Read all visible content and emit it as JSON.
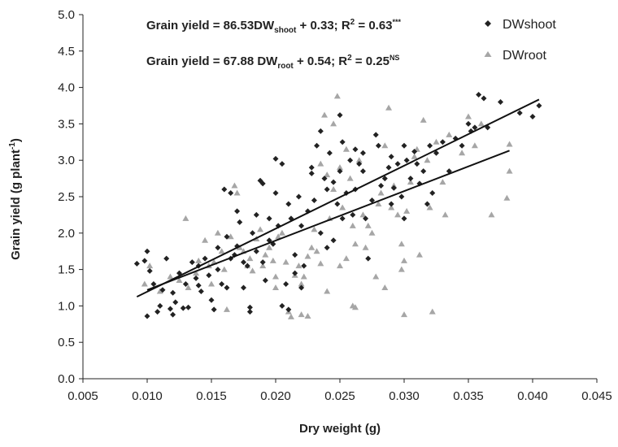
{
  "chart_data": {
    "type": "scatter",
    "xlabel": "Dry weight (g)",
    "ylabel_main": "Grain yield (g plant",
    "ylabel_sup": "-1",
    "ylabel_tail": ")",
    "xlim": [
      0.005,
      0.045
    ],
    "ylim": [
      0.0,
      5.0
    ],
    "x_ticks": [
      "0.005",
      "0.010",
      "0.015",
      "0.020",
      "0.025",
      "0.030",
      "0.035",
      "0.040",
      "0.045"
    ],
    "y_ticks": [
      "0.0",
      "0.5",
      "1.0",
      "1.5",
      "2.0",
      "2.5",
      "3.0",
      "3.5",
      "4.0",
      "4.5",
      "5.0"
    ],
    "grid": false,
    "legend_position": "top-right",
    "equations": {
      "shoot": {
        "prefix": "Grain yield = 86.53DW",
        "sub": "shoot",
        "mid": " + 0.33;   R",
        "sup2": "2",
        "r2": " = 0.63",
        "sig": "***"
      },
      "root": {
        "prefix": "Grain yield = 67.88 DW",
        "sub": "root",
        "mid": " + 0.54;   R",
        "sup2": "2",
        "r2": " = 0.25",
        "sig": "NS"
      }
    },
    "series": [
      {
        "name": "DWshoot",
        "marker": "diamond",
        "color": "#222222",
        "trendline": {
          "slope": 86.53,
          "intercept": 0.33,
          "x_range": [
            0.0092,
            0.0405
          ]
        },
        "points": [
          [
            0.0092,
            1.58
          ],
          [
            0.0098,
            1.62
          ],
          [
            0.01,
            1.75
          ],
          [
            0.0102,
            1.48
          ],
          [
            0.01,
            0.86
          ],
          [
            0.0105,
            1.3
          ],
          [
            0.0108,
            0.92
          ],
          [
            0.011,
            1.0
          ],
          [
            0.0112,
            1.22
          ],
          [
            0.0115,
            1.65
          ],
          [
            0.0118,
            0.96
          ],
          [
            0.012,
            1.18
          ],
          [
            0.012,
            0.88
          ],
          [
            0.0122,
            1.05
          ],
          [
            0.0125,
            1.45
          ],
          [
            0.0128,
            0.97
          ],
          [
            0.013,
            1.3
          ],
          [
            0.0132,
            0.98
          ],
          [
            0.0135,
            1.6
          ],
          [
            0.0138,
            1.38
          ],
          [
            0.014,
            1.55
          ],
          [
            0.014,
            1.28
          ],
          [
            0.0142,
            1.2
          ],
          [
            0.0145,
            1.65
          ],
          [
            0.0148,
            1.42
          ],
          [
            0.015,
            1.08
          ],
          [
            0.0152,
            0.95
          ],
          [
            0.0155,
            1.8
          ],
          [
            0.0155,
            1.5
          ],
          [
            0.0158,
            1.3
          ],
          [
            0.016,
            2.6
          ],
          [
            0.0162,
            1.95
          ],
          [
            0.0162,
            1.25
          ],
          [
            0.0165,
            2.55
          ],
          [
            0.0165,
            1.65
          ],
          [
            0.0168,
            1.7
          ],
          [
            0.017,
            1.82
          ],
          [
            0.017,
            2.3
          ],
          [
            0.0172,
            2.15
          ],
          [
            0.0175,
            1.6
          ],
          [
            0.0175,
            1.25
          ],
          [
            0.0178,
            1.55
          ],
          [
            0.018,
            0.98
          ],
          [
            0.018,
            0.92
          ],
          [
            0.0182,
            2.0
          ],
          [
            0.0185,
            2.25
          ],
          [
            0.0185,
            1.75
          ],
          [
            0.0188,
            2.72
          ],
          [
            0.019,
            2.68
          ],
          [
            0.019,
            1.6
          ],
          [
            0.0192,
            1.35
          ],
          [
            0.0195,
            1.9
          ],
          [
            0.0195,
            2.2
          ],
          [
            0.0198,
            1.85
          ],
          [
            0.02,
            2.55
          ],
          [
            0.02,
            3.02
          ],
          [
            0.0202,
            2.1
          ],
          [
            0.0205,
            2.95
          ],
          [
            0.0205,
            1.0
          ],
          [
            0.0208,
            1.3
          ],
          [
            0.021,
            0.95
          ],
          [
            0.021,
            2.4
          ],
          [
            0.0212,
            2.2
          ],
          [
            0.0215,
            1.7
          ],
          [
            0.0215,
            1.45
          ],
          [
            0.0218,
            2.5
          ],
          [
            0.022,
            1.25
          ],
          [
            0.022,
            2.1
          ],
          [
            0.0222,
            1.55
          ],
          [
            0.0225,
            2.3
          ],
          [
            0.0228,
            2.9
          ],
          [
            0.0228,
            2.82
          ],
          [
            0.023,
            2.45
          ],
          [
            0.0232,
            3.2
          ],
          [
            0.0235,
            3.4
          ],
          [
            0.0235,
            2.0
          ],
          [
            0.0238,
            2.75
          ],
          [
            0.024,
            1.8
          ],
          [
            0.024,
            2.6
          ],
          [
            0.0242,
            3.1
          ],
          [
            0.0245,
            2.7
          ],
          [
            0.0245,
            1.9
          ],
          [
            0.0248,
            2.4
          ],
          [
            0.025,
            3.62
          ],
          [
            0.025,
            2.85
          ],
          [
            0.0252,
            3.25
          ],
          [
            0.0252,
            2.2
          ],
          [
            0.0255,
            2.55
          ],
          [
            0.0258,
            3.0
          ],
          [
            0.026,
            2.25
          ],
          [
            0.0262,
            3.15
          ],
          [
            0.0262,
            2.6
          ],
          [
            0.0265,
            2.95
          ],
          [
            0.0268,
            3.1
          ],
          [
            0.0268,
            2.85
          ],
          [
            0.027,
            2.2
          ],
          [
            0.0272,
            1.65
          ],
          [
            0.0275,
            2.45
          ],
          [
            0.0278,
            3.35
          ],
          [
            0.028,
            3.2
          ],
          [
            0.0282,
            2.65
          ],
          [
            0.0285,
            2.75
          ],
          [
            0.0288,
            2.9
          ],
          [
            0.029,
            3.05
          ],
          [
            0.029,
            2.4
          ],
          [
            0.0292,
            2.62
          ],
          [
            0.0295,
            2.95
          ],
          [
            0.0298,
            2.5
          ],
          [
            0.03,
            3.2
          ],
          [
            0.03,
            2.2
          ],
          [
            0.0302,
            3.0
          ],
          [
            0.0305,
            2.75
          ],
          [
            0.0308,
            3.12
          ],
          [
            0.031,
            2.95
          ],
          [
            0.0312,
            2.68
          ],
          [
            0.0315,
            2.85
          ],
          [
            0.0318,
            2.4
          ],
          [
            0.032,
            3.2
          ],
          [
            0.0322,
            2.55
          ],
          [
            0.0325,
            3.1
          ],
          [
            0.033,
            3.25
          ],
          [
            0.0335,
            2.85
          ],
          [
            0.034,
            3.3
          ],
          [
            0.0345,
            3.2
          ],
          [
            0.035,
            3.5
          ],
          [
            0.0352,
            3.4
          ],
          [
            0.0355,
            3.45
          ],
          [
            0.0358,
            3.9
          ],
          [
            0.0362,
            3.85
          ],
          [
            0.0365,
            3.45
          ],
          [
            0.0375,
            3.8
          ],
          [
            0.039,
            3.65
          ],
          [
            0.04,
            3.6
          ],
          [
            0.0405,
            3.75
          ]
        ]
      },
      {
        "name": "DWroot",
        "marker": "triangle",
        "color": "#a6a6a6",
        "trendline": {
          "slope": 67.88,
          "intercept": 0.54,
          "x_range": [
            0.01,
            0.0382
          ]
        },
        "points": [
          [
            0.0098,
            1.3
          ],
          [
            0.0102,
            1.55
          ],
          [
            0.011,
            1.2
          ],
          [
            0.0118,
            1.4
          ],
          [
            0.0125,
            1.35
          ],
          [
            0.013,
            2.2
          ],
          [
            0.0132,
            1.25
          ],
          [
            0.0138,
            1.45
          ],
          [
            0.014,
            1.62
          ],
          [
            0.0145,
            1.9
          ],
          [
            0.0148,
            1.55
          ],
          [
            0.015,
            1.3
          ],
          [
            0.0152,
            1.6
          ],
          [
            0.0155,
            2.0
          ],
          [
            0.0158,
            1.75
          ],
          [
            0.016,
            1.5
          ],
          [
            0.0162,
            0.95
          ],
          [
            0.0165,
            1.95
          ],
          [
            0.0168,
            2.65
          ],
          [
            0.017,
            2.55
          ],
          [
            0.0172,
            1.8
          ],
          [
            0.0175,
            1.75
          ],
          [
            0.0178,
            1.55
          ],
          [
            0.018,
            1.65
          ],
          [
            0.0182,
            1.48
          ],
          [
            0.0185,
            1.92
          ],
          [
            0.0188,
            2.05
          ],
          [
            0.019,
            1.55
          ],
          [
            0.0192,
            1.7
          ],
          [
            0.0195,
            1.8
          ],
          [
            0.0198,
            1.62
          ],
          [
            0.02,
            1.4
          ],
          [
            0.02,
            1.25
          ],
          [
            0.0202,
            1.95
          ],
          [
            0.0205,
            2.0
          ],
          [
            0.0208,
            1.6
          ],
          [
            0.021,
            0.92
          ],
          [
            0.0212,
            0.85
          ],
          [
            0.0215,
            1.42
          ],
          [
            0.0218,
            1.55
          ],
          [
            0.022,
            1.3
          ],
          [
            0.022,
            0.88
          ],
          [
            0.0222,
            1.4
          ],
          [
            0.0225,
            1.68
          ],
          [
            0.0225,
            0.86
          ],
          [
            0.0228,
            1.8
          ],
          [
            0.023,
            2.05
          ],
          [
            0.0232,
            1.75
          ],
          [
            0.0235,
            2.95
          ],
          [
            0.0235,
            1.58
          ],
          [
            0.0238,
            3.62
          ],
          [
            0.024,
            2.8
          ],
          [
            0.024,
            1.2
          ],
          [
            0.0242,
            2.2
          ],
          [
            0.0245,
            3.5
          ],
          [
            0.0245,
            2.6
          ],
          [
            0.0248,
            3.88
          ],
          [
            0.025,
            2.9
          ],
          [
            0.025,
            1.55
          ],
          [
            0.0252,
            2.35
          ],
          [
            0.0255,
            3.15
          ],
          [
            0.0255,
            1.65
          ],
          [
            0.0258,
            2.75
          ],
          [
            0.026,
            1.0
          ],
          [
            0.026,
            2.1
          ],
          [
            0.0262,
            0.98
          ],
          [
            0.0262,
            1.85
          ],
          [
            0.0265,
            3.0
          ],
          [
            0.0268,
            2.25
          ],
          [
            0.027,
            1.8
          ],
          [
            0.0272,
            2.1
          ],
          [
            0.0275,
            2.0
          ],
          [
            0.0278,
            1.4
          ],
          [
            0.028,
            2.4
          ],
          [
            0.0282,
            2.55
          ],
          [
            0.0285,
            1.25
          ],
          [
            0.0285,
            3.2
          ],
          [
            0.0288,
            3.72
          ],
          [
            0.029,
            2.35
          ],
          [
            0.0292,
            2.65
          ],
          [
            0.0295,
            2.25
          ],
          [
            0.0298,
            1.85
          ],
          [
            0.0298,
            1.5
          ],
          [
            0.03,
            0.88
          ],
          [
            0.03,
            1.62
          ],
          [
            0.0302,
            2.3
          ],
          [
            0.0305,
            2.7
          ],
          [
            0.0308,
            3.05
          ],
          [
            0.031,
            3.15
          ],
          [
            0.0312,
            1.7
          ],
          [
            0.0315,
            3.55
          ],
          [
            0.0318,
            3.0
          ],
          [
            0.032,
            2.35
          ],
          [
            0.0322,
            0.92
          ],
          [
            0.0325,
            3.25
          ],
          [
            0.033,
            2.7
          ],
          [
            0.0332,
            2.25
          ],
          [
            0.0335,
            3.35
          ],
          [
            0.0345,
            3.1
          ],
          [
            0.035,
            3.6
          ],
          [
            0.0355,
            3.2
          ],
          [
            0.036,
            3.5
          ],
          [
            0.0368,
            2.25
          ],
          [
            0.038,
            2.48
          ],
          [
            0.0382,
            2.85
          ],
          [
            0.0382,
            3.22
          ]
        ]
      }
    ]
  }
}
